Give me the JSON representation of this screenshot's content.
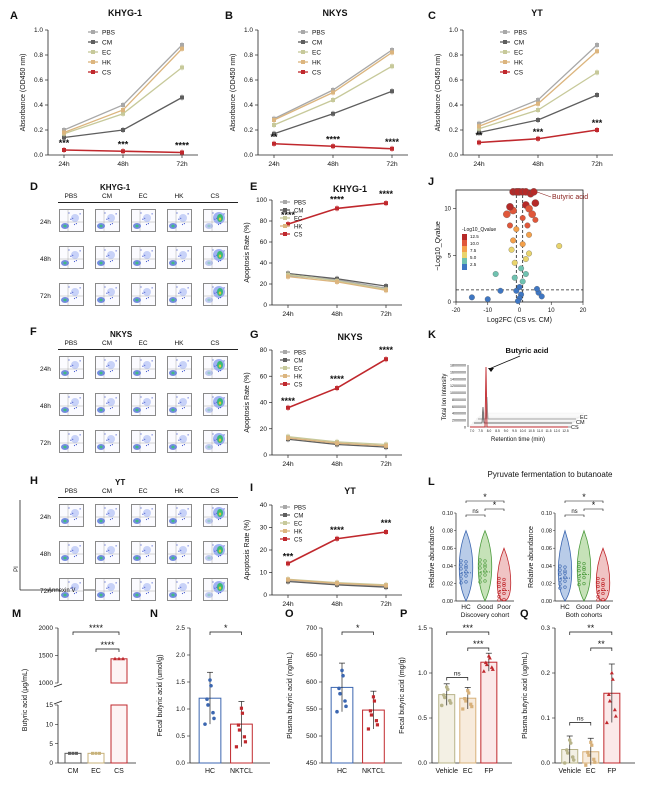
{
  "panels": {
    "A": {
      "letter": "A",
      "title": "KHYG-1"
    },
    "B": {
      "letter": "B",
      "title": "NKYS"
    },
    "C": {
      "letter": "C",
      "title": "YT"
    },
    "D": {
      "letter": "D",
      "title": "KHYG-1"
    },
    "E": {
      "letter": "E",
      "title": "KHYG-1"
    },
    "F": {
      "letter": "F",
      "title": "NKYS"
    },
    "G": {
      "letter": "G",
      "title": "NKYS"
    },
    "H": {
      "letter": "H",
      "title": "YT"
    },
    "I": {
      "letter": "I",
      "title": "YT"
    },
    "J": {
      "letter": "J"
    },
    "K": {
      "letter": "K"
    },
    "L": {
      "letter": "L",
      "title": "Pyruvate fermentation to butanoate"
    },
    "M": {
      "letter": "M"
    },
    "N": {
      "letter": "N"
    },
    "O": {
      "letter": "O"
    },
    "P": {
      "letter": "P"
    },
    "Q": {
      "letter": "Q"
    }
  },
  "flow": {
    "columns": [
      "PBS",
      "CM",
      "EC",
      "HK",
      "CS"
    ],
    "rows": [
      "24h",
      "48h",
      "72h"
    ],
    "axis_y": "PI",
    "axis_x": "Annexin V"
  },
  "colors": {
    "PBS": "#a8a8a8",
    "CM": "#5e5e5e",
    "EC": "#c7c99a",
    "HK": "#dcb57e",
    "CS": "#c0282d"
  },
  "chart_data": [
    {
      "id": "A",
      "type": "line",
      "title": "KHYG-1",
      "ylabel": "Absorbance (OD450 nm)",
      "ylim": [
        0,
        1.0
      ],
      "yticks": [
        "0.0",
        "0.2",
        "0.4",
        "0.6",
        "0.8",
        "1.0"
      ],
      "categories": [
        "24h",
        "48h",
        "72h"
      ],
      "series": [
        {
          "name": "PBS",
          "values": [
            0.2,
            0.4,
            0.88
          ]
        },
        {
          "name": "CM",
          "values": [
            0.14,
            0.2,
            0.46
          ]
        },
        {
          "name": "EC",
          "values": [
            0.17,
            0.33,
            0.7
          ]
        },
        {
          "name": "HK",
          "values": [
            0.18,
            0.36,
            0.85
          ]
        },
        {
          "name": "CS",
          "values": [
            0.04,
            0.03,
            0.02
          ]
        }
      ],
      "annotations": [
        "***",
        "***",
        "****"
      ]
    },
    {
      "id": "B",
      "type": "line",
      "title": "NKYS",
      "ylabel": "Absorbance (OD450 nm)",
      "ylim": [
        0,
        1.0
      ],
      "yticks": [
        "0.0",
        "0.2",
        "0.4",
        "0.6",
        "0.8",
        "1.0"
      ],
      "categories": [
        "24h",
        "48h",
        "72h"
      ],
      "series": [
        {
          "name": "PBS",
          "values": [
            0.29,
            0.52,
            0.84
          ]
        },
        {
          "name": "CM",
          "values": [
            0.17,
            0.33,
            0.51
          ]
        },
        {
          "name": "EC",
          "values": [
            0.24,
            0.44,
            0.71
          ]
        },
        {
          "name": "HK",
          "values": [
            0.28,
            0.5,
            0.82
          ]
        },
        {
          "name": "CS",
          "values": [
            0.09,
            0.07,
            0.05
          ]
        }
      ],
      "annotations": [
        "**",
        "****",
        "****"
      ]
    },
    {
      "id": "C",
      "type": "line",
      "title": "YT",
      "ylabel": "Absorbance (OD450 nm)",
      "ylim": [
        0,
        1.0
      ],
      "yticks": [
        "0.0",
        "0.2",
        "0.4",
        "0.6",
        "0.8",
        "1.0"
      ],
      "categories": [
        "24h",
        "48h",
        "72h"
      ],
      "series": [
        {
          "name": "PBS",
          "values": [
            0.25,
            0.44,
            0.88
          ]
        },
        {
          "name": "CM",
          "values": [
            0.18,
            0.28,
            0.48
          ]
        },
        {
          "name": "EC",
          "values": [
            0.21,
            0.36,
            0.66
          ]
        },
        {
          "name": "HK",
          "values": [
            0.23,
            0.41,
            0.83
          ]
        },
        {
          "name": "CS",
          "values": [
            0.1,
            0.13,
            0.2
          ]
        }
      ],
      "annotations": [
        "**",
        "***",
        "***"
      ]
    },
    {
      "id": "E",
      "type": "line",
      "title": "KHYG-1",
      "ylabel": "Apoptosis Rate (%)",
      "ylim": [
        0,
        100
      ],
      "yticks": [
        "0",
        "20",
        "40",
        "60",
        "80",
        "100"
      ],
      "categories": [
        "24h",
        "48h",
        "72h"
      ],
      "series": [
        {
          "name": "PBS",
          "values": [
            28,
            24,
            16
          ]
        },
        {
          "name": "CM",
          "values": [
            30,
            25,
            18
          ]
        },
        {
          "name": "EC",
          "values": [
            29,
            23,
            15
          ]
        },
        {
          "name": "HK",
          "values": [
            27,
            22,
            14
          ]
        },
        {
          "name": "CS",
          "values": [
            77,
            92,
            97
          ]
        }
      ],
      "annotations": [
        "****",
        "****",
        "****"
      ]
    },
    {
      "id": "G",
      "type": "line",
      "title": "NKYS",
      "ylabel": "Apoptosis Rate (%)",
      "ylim": [
        0,
        80
      ],
      "yticks": [
        "0",
        "20",
        "40",
        "60",
        "80"
      ],
      "categories": [
        "24h",
        "48h",
        "72h"
      ],
      "series": [
        {
          "name": "PBS",
          "values": [
            13,
            9,
            7
          ]
        },
        {
          "name": "CM",
          "values": [
            12,
            8,
            6
          ]
        },
        {
          "name": "EC",
          "values": [
            14,
            10,
            8
          ]
        },
        {
          "name": "HK",
          "values": [
            13,
            9,
            7
          ]
        },
        {
          "name": "CS",
          "values": [
            36,
            51,
            73
          ]
        }
      ],
      "annotations": [
        "****",
        "****",
        "****"
      ]
    },
    {
      "id": "I",
      "type": "line",
      "title": "YT",
      "ylabel": "Apoptosis Rate (%)",
      "ylim": [
        0,
        40
      ],
      "yticks": [
        "0",
        "10",
        "20",
        "30",
        "40"
      ],
      "categories": [
        "24h",
        "48h",
        "72h"
      ],
      "series": [
        {
          "name": "PBS",
          "values": [
            6.5,
            5,
            4
          ]
        },
        {
          "name": "CM",
          "values": [
            6,
            4.5,
            3.5
          ]
        },
        {
          "name": "EC",
          "values": [
            7,
            5.5,
            4.5
          ]
        },
        {
          "name": "HK",
          "values": [
            6.8,
            5.2,
            4.2
          ]
        },
        {
          "name": "CS",
          "values": [
            14,
            25,
            28
          ]
        }
      ],
      "annotations": [
        "***",
        "****",
        "***"
      ]
    },
    {
      "id": "J",
      "type": "scatter",
      "title": "",
      "xlabel": "Log2FC (CS vs. CM)",
      "ylabel": "−Log10_Qvalue",
      "xlim": [
        -20,
        20
      ],
      "ylim": [
        0,
        12
      ],
      "xticks": [
        "-20",
        "-10",
        "0",
        "10",
        "20"
      ],
      "yticks": [
        "0",
        "5",
        "10"
      ],
      "legend_title": "-Log10_Qvalue",
      "legend_ticks": [
        "12.5",
        "10.0",
        "7.5",
        "5.0",
        "2.5"
      ],
      "highlight": "Butyric acid",
      "points": [
        [
          -2,
          11.8
        ],
        [
          -1,
          11.8
        ],
        [
          0,
          11.8
        ],
        [
          -0.5,
          11.8
        ],
        [
          1,
          11.8
        ],
        [
          2,
          11.8
        ],
        [
          3.5,
          11.6
        ],
        [
          4.5,
          11.8
        ],
        [
          12.5,
          6.0
        ],
        [
          -7.5,
          3.0
        ],
        [
          -15,
          0.5
        ],
        [
          -10,
          0.3
        ],
        [
          -6,
          1.2
        ],
        [
          5,
          10.6
        ],
        [
          2,
          10.4
        ],
        [
          3,
          10.0
        ],
        [
          -2,
          9.8
        ],
        [
          -3,
          10.2
        ],
        [
          -4,
          9.4
        ],
        [
          1,
          9.0
        ],
        [
          4,
          9.4
        ],
        [
          5,
          8.8
        ],
        [
          2.5,
          8.2
        ],
        [
          -1,
          7.8
        ],
        [
          -3,
          8.2
        ],
        [
          3,
          7.2
        ],
        [
          -2,
          6.6
        ],
        [
          1,
          6.2
        ],
        [
          -2.5,
          5.6
        ],
        [
          3,
          5.2
        ],
        [
          2,
          4.6
        ],
        [
          -1.5,
          4.2
        ],
        [
          0.5,
          3.6
        ],
        [
          2,
          3.0
        ],
        [
          -1.5,
          2.6
        ],
        [
          1,
          2.2
        ],
        [
          0,
          1.6
        ],
        [
          -1,
          1.2
        ],
        [
          0.5,
          0.8
        ],
        [
          0,
          0.4
        ],
        [
          -0.5,
          0.1
        ],
        [
          6,
          1.0
        ],
        [
          7,
          0.6
        ],
        [
          5.5,
          1.4
        ]
      ]
    },
    {
      "id": "K",
      "type": "other",
      "title": "",
      "xlabel": "Retention time (min)",
      "ylabel": "Total Ion Intensity",
      "annotation": "Butyric acid",
      "yticks": [
        "18000000",
        "16000000",
        "14000000",
        "12000000",
        "10000000",
        "8000000",
        "6000000",
        "4000000",
        "2000000",
        "0"
      ],
      "depth_labels": [
        "EC",
        "CM",
        "CS"
      ],
      "xticks": [
        "7.0",
        "7.5",
        "8.0",
        "8.5",
        "9.0",
        "9.5",
        "10.0",
        "10.5",
        "11.0",
        "11.5",
        "12.0",
        "12.5"
      ]
    },
    {
      "id": "L1",
      "type": "violin",
      "title": "Pyruvate fermentation to butanoate",
      "ylabel": "Relative abundance",
      "ylim": [
        0,
        0.1
      ],
      "yticks": [
        "0.00",
        "0.02",
        "0.04",
        "0.06",
        "0.08",
        "0.10"
      ],
      "categories": [
        "HC",
        "Good",
        "Poor"
      ],
      "xlabel": "Discovery cohort",
      "medians": [
        0.032,
        0.033,
        0.012
      ],
      "sig": [
        "ns",
        "*",
        "*"
      ]
    },
    {
      "id": "L2",
      "type": "violin",
      "title": "",
      "ylabel": "Relative abundance",
      "ylim": [
        0,
        0.1
      ],
      "yticks": [
        "0.00",
        "0.02",
        "0.04",
        "0.06",
        "0.08",
        "0.10"
      ],
      "categories": [
        "HC",
        "Good",
        "Poor"
      ],
      "xlabel": "Both cohorts",
      "medians": [
        0.026,
        0.03,
        0.012
      ],
      "sig": [
        "ns",
        "*",
        "*"
      ]
    },
    {
      "id": "M",
      "type": "bar",
      "ylabel": "Butyric acid (μg/mL)",
      "categories": [
        "CM",
        "EC",
        "CS"
      ],
      "values": [
        2.5,
        2.5,
        1440
      ],
      "yticks_low": [
        "0",
        "5",
        "10",
        "15"
      ],
      "yticks_high": [
        "1000",
        "1500",
        "2000"
      ],
      "sig": [
        "****",
        "****"
      ]
    },
    {
      "id": "N",
      "type": "bar",
      "ylabel": "Fecal butyric acid (umol/g)",
      "categories": [
        "HC",
        "NKTCL"
      ],
      "values": [
        1.2,
        0.72
      ],
      "errors": [
        0.48,
        0.42
      ],
      "ylim": [
        0,
        2.5
      ],
      "yticks": [
        "0.0",
        "0.5",
        "1.0",
        "1.5",
        "2.0",
        "2.5"
      ],
      "sig": [
        "*"
      ]
    },
    {
      "id": "O",
      "type": "bar",
      "ylabel": "Plasma butyric acid (ng/mL)",
      "categories": [
        "HC",
        "NKTCL"
      ],
      "values": [
        590,
        548
      ],
      "errors": [
        45,
        35
      ],
      "ylim": [
        450,
        700
      ],
      "yticks": [
        "450",
        "500",
        "550",
        "600",
        "650",
        "700"
      ],
      "sig": [
        "*"
      ]
    },
    {
      "id": "P",
      "type": "bar",
      "ylabel": "Fecal butyric acid (mg/g)",
      "categories": [
        "Vehicle",
        "EC",
        "FP"
      ],
      "values": [
        0.76,
        0.72,
        1.12
      ],
      "errors": [
        0.12,
        0.12,
        0.1
      ],
      "ylim": [
        0,
        1.5
      ],
      "yticks": [
        "0.0",
        "0.5",
        "1.0",
        "1.5"
      ],
      "sig": [
        "ns",
        "***",
        "***"
      ]
    },
    {
      "id": "Q",
      "type": "bar",
      "ylabel": "Plasma butyric acid (ug/mL)",
      "categories": [
        "Vehicle",
        "EC",
        "FP"
      ],
      "values": [
        0.03,
        0.025,
        0.155
      ],
      "errors": [
        0.03,
        0.03,
        0.065
      ],
      "ylim": [
        0,
        0.3
      ],
      "yticks": [
        "0.0",
        "0.1",
        "0.2",
        "0.3"
      ],
      "sig": [
        "ns",
        "**",
        "**"
      ]
    }
  ]
}
